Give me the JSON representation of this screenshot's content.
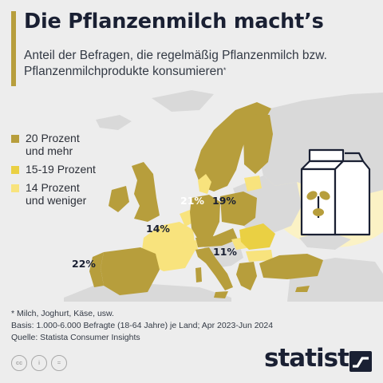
{
  "header": {
    "title": "Die Pflanzenmilch macht’s",
    "subtitle": "Anteil der Befragen, die regelmäßig Pflanzenmilch bzw. Pflanzenmilchprodukte konsumieren",
    "subtitle_mark": "*"
  },
  "legend": {
    "items": [
      {
        "label": "20 Prozent\nund mehr",
        "color": "#b79e3c"
      },
      {
        "label": "15-19 Prozent",
        "color": "#ead043"
      },
      {
        "label": "14 Prozent\nund weniger",
        "color": "#f8e37d"
      }
    ]
  },
  "map": {
    "colors": {
      "dark": "#b79e3c",
      "mid": "#ead043",
      "light": "#f8e37d",
      "nodata": "#d9d9d9",
      "glow": "#fbf2c5",
      "label_dark": "#1a2033",
      "label_light": "#ffffff"
    },
    "country_values": [
      {
        "value": "22%",
        "tone": "label_dark"
      },
      {
        "value": "14%",
        "tone": "label_dark"
      },
      {
        "value": "21%",
        "tone": "label_light"
      },
      {
        "value": "19%",
        "tone": "label_dark"
      },
      {
        "value": "11%",
        "tone": "label_dark"
      }
    ],
    "illustration": "plant-milk-carton-icon"
  },
  "footnotes": {
    "note": "* Milch, Joghurt, Käse, usw.",
    "basis": "Basis: 1.000-6.000 Befragte (18-64 Jahre) je Land; Apr 2023-Jun 2024",
    "source": "Quelle: Statista Consumer Insights"
  },
  "footer": {
    "license_icons": [
      "cc-icon",
      "attribution-icon",
      "no-derivatives-icon"
    ],
    "license_labels": [
      "cc",
      "i",
      "="
    ],
    "brand": "statista",
    "brand_icon": "statista-logo-icon"
  }
}
